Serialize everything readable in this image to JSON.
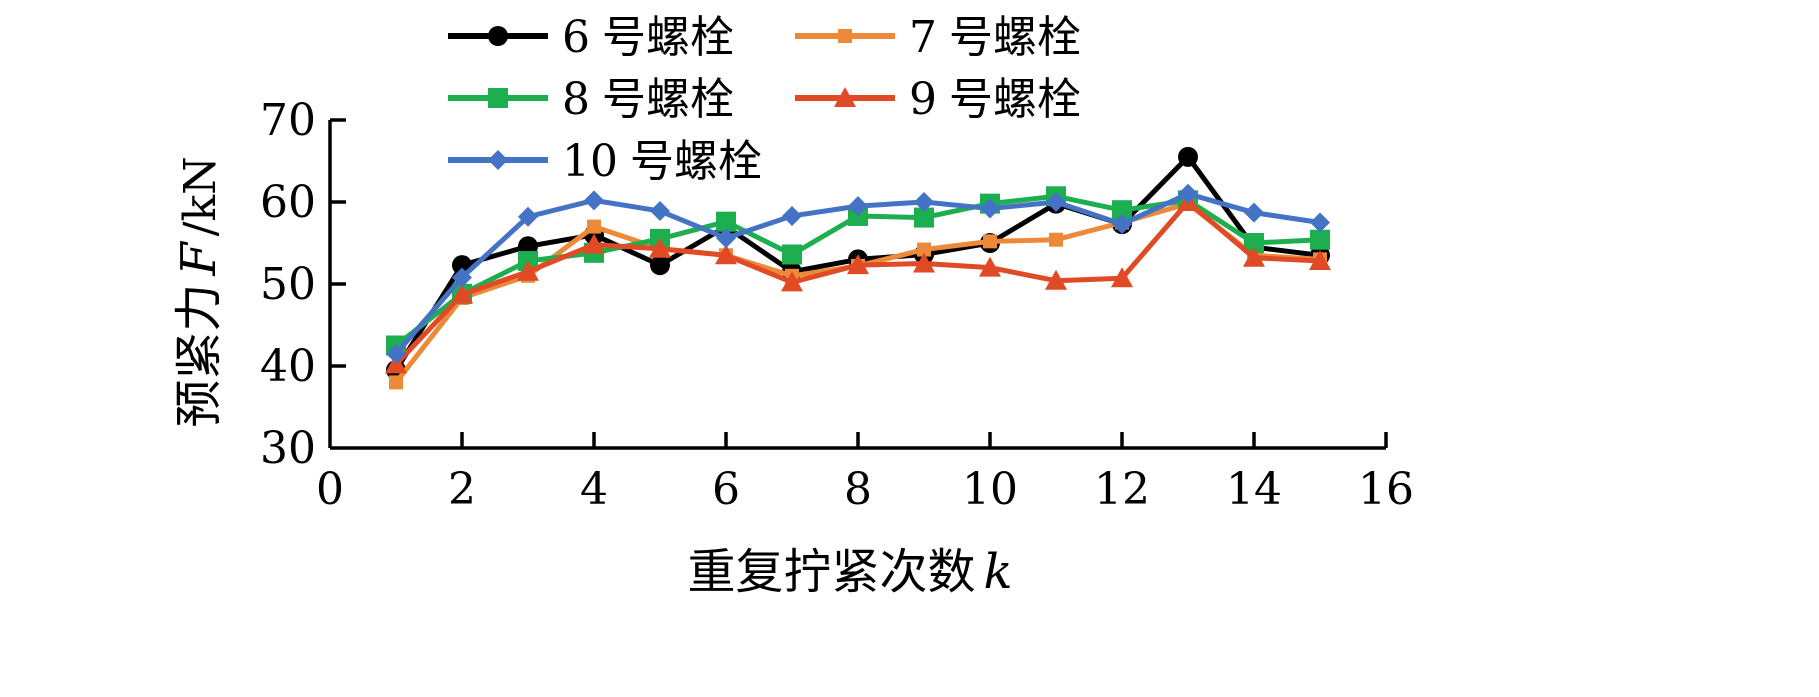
{
  "chart_data": {
    "type": "line",
    "xlabel": "重复拧紧次数",
    "xlabel_var": "k",
    "ylabel": "预紧力",
    "ylabel_var": "F",
    "ylabel_unit": "/kN",
    "xlim": [
      0,
      16
    ],
    "ylim": [
      30,
      70
    ],
    "xticks": [
      "0",
      "2",
      "4",
      "6",
      "8",
      "10",
      "12",
      "14",
      "16"
    ],
    "yticks": [
      "30",
      "40",
      "50",
      "60",
      "70"
    ],
    "grid": false,
    "legend_position": "top",
    "x": [
      1,
      2,
      3,
      4,
      5,
      6,
      7,
      8,
      9,
      10,
      11,
      12,
      13,
      14,
      15
    ],
    "series": [
      {
        "name": "6号螺栓",
        "label_num": "6",
        "label_text": "号螺栓",
        "color": "#000000",
        "marker": "circle",
        "values": [
          39.5,
          52.3,
          54.6,
          56.0,
          52.3,
          57.0,
          51.5,
          53.0,
          53.6,
          55.0,
          59.8,
          57.3,
          65.5,
          54.5,
          53.5
        ]
      },
      {
        "name": "7号螺栓",
        "label_num": "7",
        "label_text": "号螺栓",
        "color": "#ED8A3A",
        "marker": "square-small",
        "values": [
          38.0,
          48.3,
          51.0,
          57.0,
          54.3,
          53.5,
          51.0,
          52.2,
          54.2,
          55.2,
          55.4,
          57.5,
          59.8,
          53.5,
          53.0
        ]
      },
      {
        "name": "8号螺栓",
        "label_num": "8",
        "label_text": "号螺栓",
        "color": "#1DAF4F",
        "marker": "square",
        "values": [
          42.5,
          48.8,
          52.8,
          53.8,
          55.5,
          57.6,
          53.6,
          58.3,
          58.1,
          59.8,
          60.7,
          59.0,
          60.2,
          55.0,
          55.4
        ]
      },
      {
        "name": "9号螺栓",
        "label_num": "9",
        "label_text": "号螺栓",
        "color": "#E04A24",
        "marker": "triangle",
        "values": [
          40.2,
          48.7,
          51.5,
          54.8,
          54.3,
          53.5,
          50.2,
          52.3,
          52.5,
          52.0,
          50.4,
          50.7,
          60.0,
          53.2,
          52.8
        ]
      },
      {
        "name": "10号螺栓",
        "label_num": "10",
        "label_text": "号螺栓",
        "color": "#4472C4",
        "marker": "diamond",
        "values": [
          41.5,
          50.8,
          58.2,
          60.2,
          58.9,
          55.6,
          58.3,
          59.5,
          60.0,
          59.2,
          60.0,
          57.3,
          61.0,
          58.7,
          57.5
        ]
      }
    ]
  }
}
